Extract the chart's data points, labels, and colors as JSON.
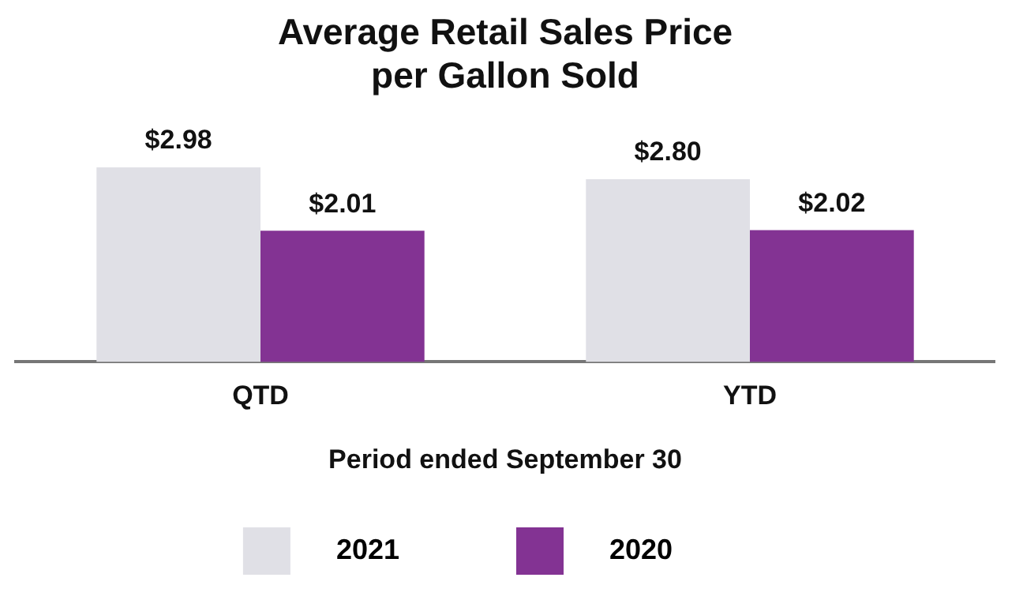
{
  "chart_data": {
    "type": "bar",
    "title": [
      "Average Retail Sales Price",
      "per Gallon Sold"
    ],
    "xlabel": "Period ended September 30",
    "categories": [
      "QTD",
      "YTD"
    ],
    "series": [
      {
        "name": "2021",
        "color": "#e0e0e6",
        "values": [
          2.98,
          2.8
        ],
        "value_labels": [
          "$2.98",
          "$2.80"
        ]
      },
      {
        "name": "2020",
        "color": "#833393",
        "values": [
          2.01,
          2.02
        ],
        "value_labels": [
          "$2.01",
          "$2.02"
        ]
      }
    ],
    "tick_labels": "x",
    "grid": false,
    "legend": "bottom"
  }
}
